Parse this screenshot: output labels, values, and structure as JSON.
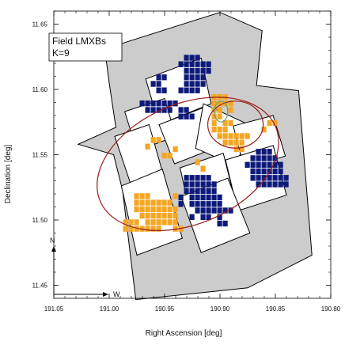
{
  "chart_data": {
    "type": "scatter",
    "title": "",
    "xlabel": "Right Ascension [deg]",
    "ylabel": "Declination [deg]",
    "xlim": [
      191.05,
      190.8
    ],
    "ylim": [
      11.44,
      11.66
    ],
    "x_inverted": true,
    "xticks": [
      "191.05",
      "191.00",
      "190.95",
      "190.90",
      "190.85",
      "190.80"
    ],
    "yticks": [
      "11.45",
      "11.50",
      "11.55",
      "11.60",
      "11.65"
    ],
    "grid": false,
    "legend": {
      "position": "top-left",
      "lines": [
        "Field LMXBs",
        "K=9"
      ]
    },
    "compass": {
      "north": "N",
      "west": "W"
    },
    "colors": {
      "footprint_fill": "#cccccc",
      "chip_fill": "#ffffff",
      "outline": "#000000",
      "low": "#f5a623",
      "high": "#0d1a7a",
      "ellipse": "#9b1b1b",
      "small_ellipse": "#6a9e6a"
    },
    "footprint": [
      [
        191.004,
        11.631
      ],
      [
        190.9,
        11.659
      ],
      [
        190.862,
        11.645
      ],
      [
        190.867,
        11.603
      ],
      [
        190.829,
        11.599
      ],
      [
        190.817,
        11.473
      ],
      [
        190.875,
        11.448
      ],
      [
        190.976,
        11.439
      ],
      [
        190.988,
        11.523
      ],
      [
        190.996,
        11.55
      ],
      [
        191.028,
        11.558
      ],
      [
        190.994,
        11.571
      ],
      [
        191.0,
        11.605
      ]
    ],
    "chips": [
      [
        [
          190.967,
          11.608
        ],
        [
          190.917,
          11.624
        ],
        [
          190.908,
          11.589
        ],
        [
          190.955,
          11.573
        ]
      ],
      [
        [
          190.986,
          11.583
        ],
        [
          190.95,
          11.593
        ],
        [
          190.94,
          11.564
        ],
        [
          190.975,
          11.553
        ]
      ],
      [
        [
          190.995,
          11.564
        ],
        [
          190.964,
          11.573
        ],
        [
          190.952,
          11.537
        ],
        [
          190.98,
          11.526
        ]
      ],
      [
        [
          190.955,
          11.573
        ],
        [
          190.912,
          11.587
        ],
        [
          190.902,
          11.556
        ],
        [
          190.941,
          11.543
        ]
      ],
      [
        [
          190.915,
          11.589
        ],
        [
          190.874,
          11.573
        ],
        [
          190.885,
          11.541
        ],
        [
          190.922,
          11.555
        ]
      ],
      [
        [
          190.888,
          11.572
        ],
        [
          190.852,
          11.58
        ],
        [
          190.841,
          11.549
        ],
        [
          190.878,
          11.539
        ]
      ],
      [
        [
          190.936,
          11.54
        ],
        [
          190.897,
          11.551
        ],
        [
          190.887,
          11.517
        ],
        [
          190.927,
          11.505
        ]
      ],
      [
        [
          190.895,
          11.546
        ],
        [
          190.852,
          11.557
        ],
        [
          190.84,
          11.519
        ],
        [
          190.884,
          11.507
        ]
      ],
      [
        [
          190.989,
          11.526
        ],
        [
          190.952,
          11.539
        ],
        [
          190.934,
          11.486
        ],
        [
          190.975,
          11.473
        ]
      ],
      [
        [
          190.935,
          11.518
        ],
        [
          190.893,
          11.532
        ],
        [
          190.873,
          11.49
        ],
        [
          190.917,
          11.475
        ]
      ]
    ],
    "high_cells": [
      [
        190.93,
        11.624
      ],
      [
        190.925,
        11.624
      ],
      [
        190.92,
        11.624
      ],
      [
        190.935,
        11.619
      ],
      [
        190.93,
        11.619
      ],
      [
        190.925,
        11.619
      ],
      [
        190.92,
        11.619
      ],
      [
        190.915,
        11.619
      ],
      [
        190.91,
        11.619
      ],
      [
        190.93,
        11.614
      ],
      [
        190.925,
        11.614
      ],
      [
        190.92,
        11.614
      ],
      [
        190.915,
        11.614
      ],
      [
        190.91,
        11.614
      ],
      [
        190.93,
        11.609
      ],
      [
        190.925,
        11.609
      ],
      [
        190.92,
        11.609
      ],
      [
        190.915,
        11.609
      ],
      [
        190.93,
        11.604
      ],
      [
        190.925,
        11.604
      ],
      [
        190.92,
        11.604
      ],
      [
        190.915,
        11.604
      ],
      [
        190.935,
        11.599
      ],
      [
        190.93,
        11.599
      ],
      [
        190.925,
        11.599
      ],
      [
        190.92,
        11.599
      ],
      [
        190.955,
        11.609
      ],
      [
        190.95,
        11.609
      ],
      [
        190.955,
        11.604
      ],
      [
        190.96,
        11.604
      ],
      [
        190.955,
        11.599
      ],
      [
        190.95,
        11.599
      ],
      [
        190.97,
        11.589
      ],
      [
        190.965,
        11.589
      ],
      [
        190.96,
        11.589
      ],
      [
        190.955,
        11.589
      ],
      [
        190.95,
        11.589
      ],
      [
        190.945,
        11.589
      ],
      [
        190.94,
        11.589
      ],
      [
        190.965,
        11.584
      ],
      [
        190.96,
        11.584
      ],
      [
        190.955,
        11.584
      ],
      [
        190.95,
        11.584
      ],
      [
        190.945,
        11.584
      ],
      [
        190.935,
        11.584
      ],
      [
        190.93,
        11.584
      ],
      [
        190.935,
        11.579
      ],
      [
        190.93,
        11.579
      ],
      [
        190.925,
        11.579
      ],
      [
        190.865,
        11.552
      ],
      [
        190.86,
        11.552
      ],
      [
        190.855,
        11.552
      ],
      [
        190.87,
        11.547
      ],
      [
        190.865,
        11.547
      ],
      [
        190.86,
        11.547
      ],
      [
        190.855,
        11.547
      ],
      [
        190.85,
        11.547
      ],
      [
        190.875,
        11.542
      ],
      [
        190.87,
        11.542
      ],
      [
        190.865,
        11.542
      ],
      [
        190.86,
        11.542
      ],
      [
        190.855,
        11.542
      ],
      [
        190.85,
        11.542
      ],
      [
        190.845,
        11.542
      ],
      [
        190.87,
        11.537
      ],
      [
        190.865,
        11.537
      ],
      [
        190.86,
        11.537
      ],
      [
        190.855,
        11.537
      ],
      [
        190.85,
        11.537
      ],
      [
        190.845,
        11.537
      ],
      [
        190.87,
        11.532
      ],
      [
        190.865,
        11.532
      ],
      [
        190.86,
        11.532
      ],
      [
        190.855,
        11.532
      ],
      [
        190.85,
        11.532
      ],
      [
        190.845,
        11.532
      ],
      [
        190.84,
        11.532
      ],
      [
        190.865,
        11.527
      ],
      [
        190.86,
        11.527
      ],
      [
        190.855,
        11.527
      ],
      [
        190.85,
        11.527
      ],
      [
        190.845,
        11.527
      ],
      [
        190.84,
        11.527
      ],
      [
        190.93,
        11.532
      ],
      [
        190.925,
        11.532
      ],
      [
        190.92,
        11.532
      ],
      [
        190.915,
        11.532
      ],
      [
        190.91,
        11.532
      ],
      [
        190.93,
        11.527
      ],
      [
        190.925,
        11.527
      ],
      [
        190.92,
        11.527
      ],
      [
        190.915,
        11.527
      ],
      [
        190.91,
        11.527
      ],
      [
        190.905,
        11.527
      ],
      [
        190.93,
        11.522
      ],
      [
        190.925,
        11.522
      ],
      [
        190.92,
        11.522
      ],
      [
        190.915,
        11.522
      ],
      [
        190.91,
        11.522
      ],
      [
        190.905,
        11.522
      ],
      [
        190.925,
        11.517
      ],
      [
        190.92,
        11.517
      ],
      [
        190.915,
        11.517
      ],
      [
        190.91,
        11.517
      ],
      [
        190.905,
        11.517
      ],
      [
        190.9,
        11.517
      ],
      [
        190.925,
        11.512
      ],
      [
        190.92,
        11.512
      ],
      [
        190.915,
        11.512
      ],
      [
        190.91,
        11.512
      ],
      [
        190.905,
        11.512
      ],
      [
        190.92,
        11.507
      ],
      [
        190.915,
        11.507
      ],
      [
        190.91,
        11.507
      ],
      [
        190.905,
        11.507
      ],
      [
        190.9,
        11.507
      ],
      [
        190.895,
        11.507
      ],
      [
        190.935,
        11.517
      ],
      [
        190.935,
        11.512
      ],
      [
        190.915,
        11.502
      ],
      [
        190.91,
        11.502
      ],
      [
        190.9,
        11.502
      ],
      [
        190.925,
        11.502
      ],
      [
        190.9,
        11.497
      ],
      [
        190.895,
        11.497
      ],
      [
        190.89,
        11.507
      ],
      [
        190.9,
        11.512
      ]
    ],
    "low_cells": [
      [
        190.905,
        11.594
      ],
      [
        190.9,
        11.594
      ],
      [
        190.895,
        11.594
      ],
      [
        190.905,
        11.589
      ],
      [
        190.9,
        11.589
      ],
      [
        190.895,
        11.589
      ],
      [
        190.89,
        11.589
      ],
      [
        190.905,
        11.584
      ],
      [
        190.9,
        11.584
      ],
      [
        190.89,
        11.584
      ],
      [
        190.905,
        11.579
      ],
      [
        190.9,
        11.579
      ],
      [
        190.905,
        11.574
      ],
      [
        190.895,
        11.574
      ],
      [
        190.89,
        11.574
      ],
      [
        190.905,
        11.569
      ],
      [
        190.9,
        11.569
      ],
      [
        190.895,
        11.569
      ],
      [
        190.9,
        11.564
      ],
      [
        190.895,
        11.564
      ],
      [
        190.89,
        11.564
      ],
      [
        190.885,
        11.564
      ],
      [
        190.88,
        11.564
      ],
      [
        190.875,
        11.564
      ],
      [
        190.895,
        11.559
      ],
      [
        190.89,
        11.559
      ],
      [
        190.885,
        11.559
      ],
      [
        190.88,
        11.559
      ],
      [
        190.885,
        11.554
      ],
      [
        190.88,
        11.554
      ],
      [
        190.855,
        11.574
      ],
      [
        190.85,
        11.574
      ],
      [
        190.86,
        11.569
      ],
      [
        190.96,
        11.561
      ],
      [
        190.955,
        11.561
      ],
      [
        190.965,
        11.556
      ],
      [
        190.95,
        11.549
      ],
      [
        190.945,
        11.549
      ],
      [
        190.94,
        11.554
      ],
      [
        190.92,
        11.544
      ],
      [
        190.915,
        11.539
      ],
      [
        190.975,
        11.518
      ],
      [
        190.97,
        11.518
      ],
      [
        190.965,
        11.518
      ],
      [
        190.975,
        11.513
      ],
      [
        190.97,
        11.513
      ],
      [
        190.965,
        11.513
      ],
      [
        190.96,
        11.513
      ],
      [
        190.955,
        11.513
      ],
      [
        190.95,
        11.513
      ],
      [
        190.975,
        11.508
      ],
      [
        190.97,
        11.508
      ],
      [
        190.965,
        11.508
      ],
      [
        190.96,
        11.508
      ],
      [
        190.955,
        11.508
      ],
      [
        190.95,
        11.508
      ],
      [
        190.945,
        11.508
      ],
      [
        190.94,
        11.508
      ],
      [
        190.97,
        11.503
      ],
      [
        190.965,
        11.503
      ],
      [
        190.96,
        11.503
      ],
      [
        190.955,
        11.503
      ],
      [
        190.95,
        11.503
      ],
      [
        190.945,
        11.503
      ],
      [
        190.94,
        11.503
      ],
      [
        190.965,
        11.498
      ],
      [
        190.96,
        11.498
      ],
      [
        190.955,
        11.498
      ],
      [
        190.95,
        11.498
      ],
      [
        190.945,
        11.498
      ],
      [
        190.94,
        11.498
      ],
      [
        190.985,
        11.498
      ],
      [
        190.98,
        11.498
      ],
      [
        190.975,
        11.498
      ],
      [
        190.985,
        11.493
      ],
      [
        190.98,
        11.493
      ],
      [
        190.975,
        11.493
      ],
      [
        190.97,
        11.493
      ],
      [
        190.965,
        11.493
      ],
      [
        190.96,
        11.493
      ],
      [
        190.955,
        11.493
      ],
      [
        190.94,
        11.493
      ],
      [
        190.935,
        11.493
      ],
      [
        190.945,
        11.513
      ],
      [
        190.94,
        11.518
      ]
    ],
    "ellipses": [
      {
        "cx": 190.929,
        "cy": 11.543,
        "rx": 0.086,
        "ry": 0.046,
        "angle_deg": -23,
        "color": "#9b1b1b"
      },
      {
        "cx": 190.886,
        "cy": 11.573,
        "rx": 0.025,
        "ry": 0.018,
        "angle_deg": 0,
        "color": "#9b1b1b"
      },
      {
        "cx": 190.899,
        "cy": 11.583,
        "rx": 0.006,
        "ry": 0.008,
        "angle_deg": 0,
        "color": "#6a9e6a"
      }
    ]
  }
}
